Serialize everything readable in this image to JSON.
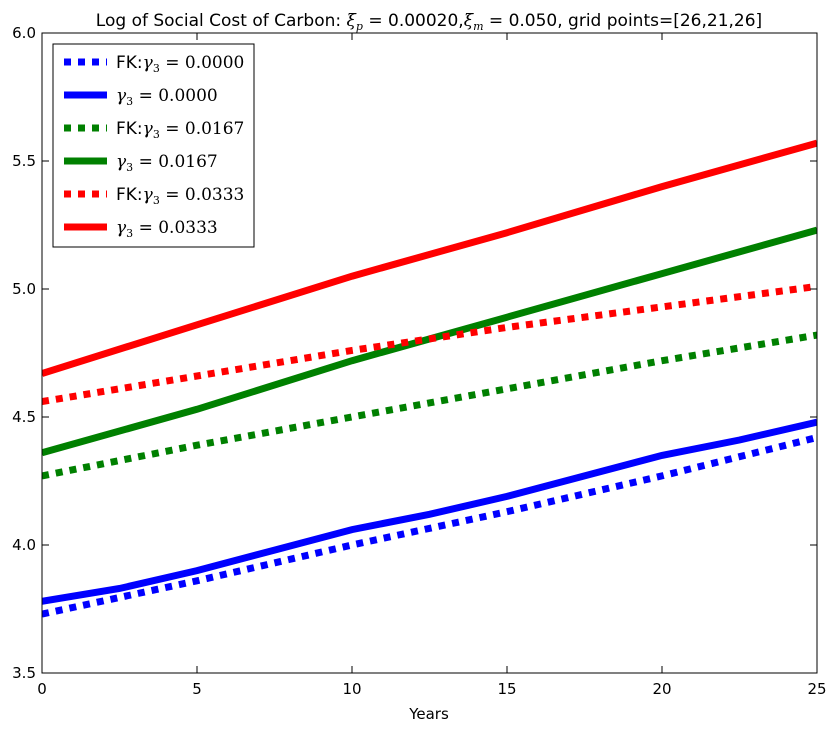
{
  "chart_data": {
    "type": "line",
    "title": "Log of Social Cost of Carbon: ξp=0.00020,ξm=0.050, grid points=[26,21,26]",
    "xlabel": "Years",
    "ylabel": "",
    "xlim": [
      0,
      25
    ],
    "ylim": [
      3.5,
      6.0
    ],
    "xticks": [
      "0",
      "5",
      "10",
      "15",
      "20",
      "25"
    ],
    "yticks": [
      "3.5",
      "4.0",
      "4.5",
      "5.0",
      "5.5",
      "6.0"
    ],
    "legend_position": "top-left",
    "grid": false,
    "series": [
      {
        "name": "FK:γ3 = 0.0000",
        "color": "#0000ff",
        "style": "dotted",
        "x": [
          0,
          5,
          10,
          15,
          20,
          25
        ],
        "values": [
          3.73,
          3.86,
          4.0,
          4.13,
          4.27,
          4.42
        ]
      },
      {
        "name": "γ3 = 0.0000",
        "color": "#0000ff",
        "style": "solid",
        "x": [
          0,
          2.5,
          5,
          7.5,
          10,
          12.5,
          15,
          17.5,
          20,
          22.5,
          25
        ],
        "values": [
          3.78,
          3.83,
          3.9,
          3.98,
          4.06,
          4.12,
          4.19,
          4.27,
          4.35,
          4.41,
          4.48
        ]
      },
      {
        "name": "FK:γ3 = 0.0167",
        "color": "#008000",
        "style": "dotted",
        "x": [
          0,
          5,
          10,
          15,
          20,
          25
        ],
        "values": [
          4.27,
          4.39,
          4.5,
          4.61,
          4.72,
          4.82
        ]
      },
      {
        "name": "γ3 = 0.0167",
        "color": "#008000",
        "style": "solid",
        "x": [
          0,
          5,
          10,
          15,
          20,
          25
        ],
        "values": [
          4.36,
          4.53,
          4.72,
          4.89,
          5.06,
          5.23
        ]
      },
      {
        "name": "FK:γ3 = 0.0333",
        "color": "#ff0000",
        "style": "dotted",
        "x": [
          0,
          5,
          10,
          15,
          20,
          25
        ],
        "values": [
          4.56,
          4.66,
          4.76,
          4.85,
          4.93,
          5.01
        ]
      },
      {
        "name": "γ3 = 0.0333",
        "color": "#ff0000",
        "style": "solid",
        "x": [
          0,
          5,
          10,
          15,
          20,
          25
        ],
        "values": [
          4.67,
          4.86,
          5.05,
          5.22,
          5.4,
          5.57
        ]
      }
    ]
  }
}
